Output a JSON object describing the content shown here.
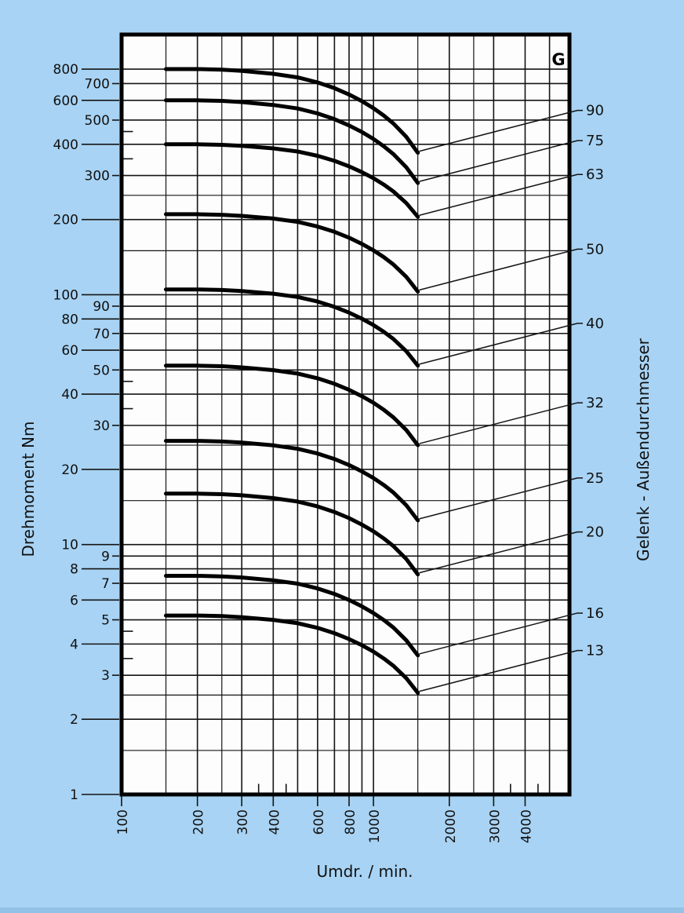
{
  "page": {
    "background_color": "#a8d3f4",
    "corner_label": "G"
  },
  "axis_titles": {
    "left": "Drehmoment Nm",
    "right": "Gelenk - Außendurchmesser",
    "bottom": "Umdr. / min."
  },
  "chart_data": {
    "type": "line",
    "title": "",
    "xlabel": "Umdr. / min.",
    "ylabel": "Drehmoment Nm",
    "ylabel_right": "Gelenk - Außendurchmesser",
    "corner_label": "G",
    "x_scale": "log",
    "y_scale": "log",
    "xlim": [
      100,
      6000
    ],
    "ylim": [
      1,
      1100
    ],
    "grid": "on",
    "x_tick_labels": [
      100,
      200,
      300,
      400,
      600,
      800,
      1000,
      2000,
      3000,
      4000
    ],
    "y_tick_labels_major": [
      800,
      600,
      400,
      200,
      100,
      80,
      60,
      40,
      20,
      10,
      8,
      6,
      4,
      2,
      1
    ],
    "y_tick_labels_minor": [
      700,
      500,
      300,
      90,
      70,
      50,
      30,
      9,
      7,
      5,
      3
    ],
    "x_gridlines": [
      150,
      200,
      250,
      300,
      400,
      500,
      600,
      700,
      800,
      900,
      1000,
      1500,
      2000,
      2500,
      3000,
      4000,
      5000
    ],
    "y_gridlines": [
      1.5,
      2,
      2.5,
      3,
      4,
      5,
      6,
      7,
      8,
      9,
      10,
      15,
      20,
      25,
      30,
      40,
      50,
      60,
      70,
      80,
      90,
      100,
      150,
      200,
      250,
      300,
      400,
      500,
      600,
      700,
      800
    ],
    "x_half_gridlines": [
      150,
      250,
      1500,
      2500
    ],
    "y_half_gridlines": [
      1.5,
      2.5,
      15,
      25,
      150,
      250
    ],
    "x_minor_ticks": [
      350,
      450,
      3500,
      4500
    ],
    "y_minor_ticks": [
      3.5,
      4.5,
      35,
      45,
      350,
      450
    ],
    "series": [
      {
        "label": "90",
        "flat_torque_nm": 800,
        "dip_torque_nm": 370
      },
      {
        "label": "75",
        "flat_torque_nm": 600,
        "dip_torque_nm": 280
      },
      {
        "label": "63",
        "flat_torque_nm": 400,
        "dip_torque_nm": 205
      },
      {
        "label": "50",
        "flat_torque_nm": 210,
        "dip_torque_nm": 103
      },
      {
        "label": "40",
        "flat_torque_nm": 105,
        "dip_torque_nm": 52
      },
      {
        "label": "32",
        "flat_torque_nm": 52,
        "dip_torque_nm": 25
      },
      {
        "label": "25",
        "flat_torque_nm": 26,
        "dip_torque_nm": 12.5
      },
      {
        "label": "20",
        "flat_torque_nm": 16,
        "dip_torque_nm": 7.6
      },
      {
        "label": "16",
        "flat_torque_nm": 7.5,
        "dip_torque_nm": 3.6
      },
      {
        "label": "13",
        "flat_torque_nm": 5.2,
        "dip_torque_nm": 2.55
      }
    ],
    "curve_start_rpm": 150,
    "curve_dip_rpm": 1500,
    "curve_rpm_points": [
      150,
      200,
      250,
      300,
      400,
      500,
      600,
      700,
      800,
      900,
      1000,
      1100,
      1200,
      1350,
      1500
    ],
    "curve_shape_progress": [
      0,
      0,
      0.007,
      0.021,
      0.056,
      0.099,
      0.159,
      0.228,
      0.304,
      0.384,
      0.467,
      0.556,
      0.65,
      0.81,
      1
    ]
  }
}
